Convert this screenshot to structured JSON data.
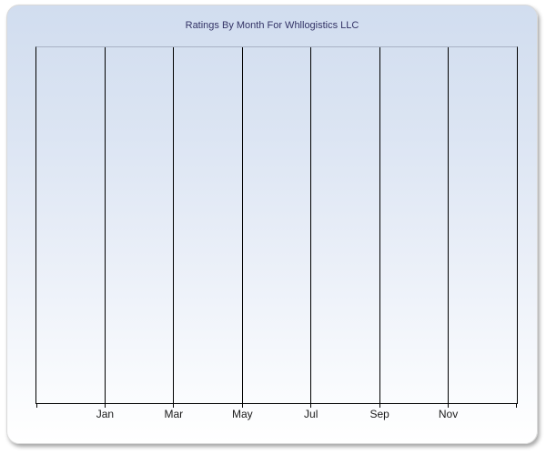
{
  "chart_data": {
    "type": "line",
    "title": "Ratings By Month For Whllogistics LLC",
    "x_tick_labels": [
      "Jan",
      "Mar",
      "May",
      "Jul",
      "Sep",
      "Nov"
    ],
    "y_tick_labels": [],
    "series": [],
    "grid": "vertical-only",
    "legend": "none"
  },
  "colors": {
    "panel_top": "#d1ddef",
    "panel_bottom": "#ffffff",
    "panel_border": "#d9d9d9",
    "grid_line": "#000000",
    "axis_line": "#000000",
    "plot_top_border": "#a9b2c4",
    "title_text": "#333366",
    "tick_label_text": "#1a1a1a"
  }
}
